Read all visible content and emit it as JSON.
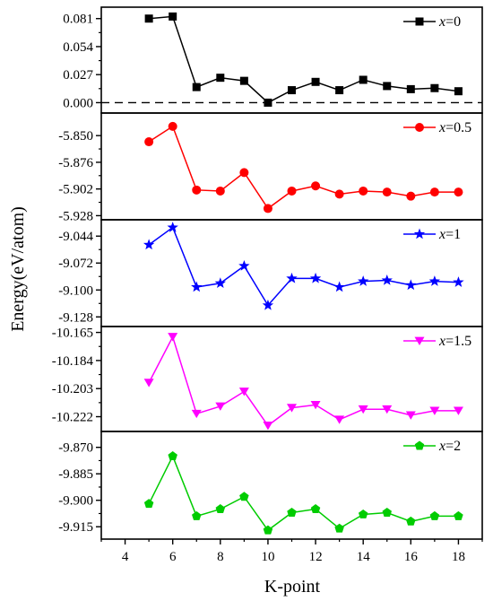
{
  "chart_data": {
    "type": "line",
    "xlabel": "K-point",
    "ylabel": "Energy(eV/atom)",
    "xlim": [
      3,
      19
    ],
    "xticks": [
      "4",
      "6",
      "8",
      "10",
      "12",
      "14",
      "16",
      "18"
    ],
    "x": [
      5,
      6,
      7,
      8,
      9,
      10,
      11,
      12,
      13,
      14,
      15,
      16,
      17,
      18
    ],
    "panels": [
      {
        "legend": "x=0",
        "legend_var": "x",
        "legend_value": "=0",
        "color": "#000000",
        "marker": "square",
        "ylim": [
          -0.01,
          0.092
        ],
        "yticks": [
          "0.000",
          "0.027",
          "0.054",
          "0.081"
        ],
        "reference_line": 0,
        "values": [
          0.081,
          0.083,
          0.015,
          0.024,
          0.021,
          0.0,
          0.012,
          0.02,
          0.012,
          0.022,
          0.016,
          0.013,
          0.014,
          0.011
        ]
      },
      {
        "legend": "x=0.5",
        "legend_var": "x",
        "legend_value": "=0.5",
        "color": "#ff0000",
        "marker": "circle",
        "ylim": [
          -5.932,
          -5.828
        ],
        "yticks": [
          "-5.850",
          "-5.876",
          "-5.902",
          "-5.928"
        ],
        "values": [
          -5.856,
          -5.841,
          -5.903,
          -5.904,
          -5.886,
          -5.921,
          -5.904,
          -5.899,
          -5.907,
          -5.904,
          -5.905,
          -5.909,
          -5.905,
          -5.905
        ]
      },
      {
        "legend": "x=1",
        "legend_var": "x",
        "legend_value": "=1",
        "color": "#0000ff",
        "marker": "star",
        "ylim": [
          -9.138,
          -9.027
        ],
        "yticks": [
          "-9.044",
          "-9.072",
          "-9.100",
          "-9.128"
        ],
        "values": [
          -9.053,
          -9.035,
          -9.097,
          -9.093,
          -9.075,
          -9.116,
          -9.088,
          -9.088,
          -9.097,
          -9.091,
          -9.09,
          -9.095,
          -9.091,
          -9.092
        ]
      },
      {
        "legend": "x=1.5",
        "legend_var": "x",
        "legend_value": "=1.5",
        "color": "#ff00ff",
        "marker": "triangle-down",
        "ylim": [
          -10.232,
          -10.161
        ],
        "yticks": [
          "-10.165",
          "-10.184",
          "-10.203",
          "-10.222"
        ],
        "values": [
          -10.199,
          -10.168,
          -10.22,
          -10.215,
          -10.205,
          -10.228,
          -10.216,
          -10.214,
          -10.224,
          -10.217,
          -10.217,
          -10.221,
          -10.218,
          -10.218
        ]
      },
      {
        "legend": "x=2",
        "legend_var": "x",
        "legend_value": "=2",
        "color": "#00cc00",
        "marker": "pentagon",
        "ylim": [
          -9.922,
          -9.861
        ],
        "yticks": [
          "-9.870",
          "-9.885",
          "-9.900",
          "-9.915"
        ],
        "values": [
          -9.902,
          -9.875,
          -9.909,
          -9.905,
          -9.898,
          -9.917,
          -9.907,
          -9.905,
          -9.916,
          -9.908,
          -9.907,
          -9.912,
          -9.909,
          -9.909
        ]
      }
    ]
  }
}
